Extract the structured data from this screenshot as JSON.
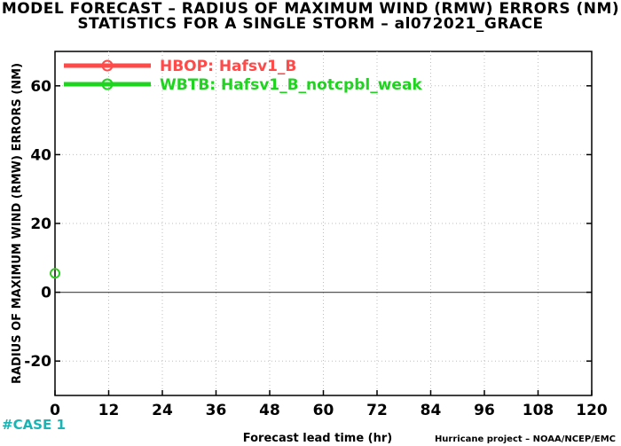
{
  "header": {
    "title": "MODEL FORECAST – RADIUS OF MAXIMUM WIND (RMW) ERRORS (NM)",
    "subtitle": "STATISTICS FOR A SINGLE STORM – al072021_GRACE"
  },
  "footer": {
    "case_label": "#CASE  1",
    "credit": "Hurricane project – NOAA/NCEP/EMC"
  },
  "chart_data": {
    "type": "line",
    "title": "MODEL FORECAST – RADIUS OF MAXIMUM WIND (RMW) ERRORS (NM)",
    "subtitle": "STATISTICS FOR A SINGLE STORM – al072021_GRACE",
    "xlabel": "Forecast lead time (hr)",
    "ylabel": "RADIUS OF MAXIMUM WIND (RMW) ERRORS (NM)",
    "xlim": [
      0,
      120
    ],
    "ylim": [
      -30,
      70
    ],
    "xticks": [
      0,
      12,
      24,
      36,
      48,
      60,
      72,
      84,
      96,
      108,
      120
    ],
    "yticks": [
      -20,
      0,
      20,
      40,
      60
    ],
    "grid": true,
    "legend_position": "top-left",
    "series": [
      {
        "name": "HBOP: Hafsv1_B",
        "color": "#ff4a4a",
        "x": [
          0
        ],
        "y": [
          5.5
        ]
      },
      {
        "name": "WBTB: Hafsv1_B_notcpbl_weak",
        "color": "#1ed41e",
        "x": [
          0
        ],
        "y": [
          5.5
        ]
      }
    ]
  }
}
